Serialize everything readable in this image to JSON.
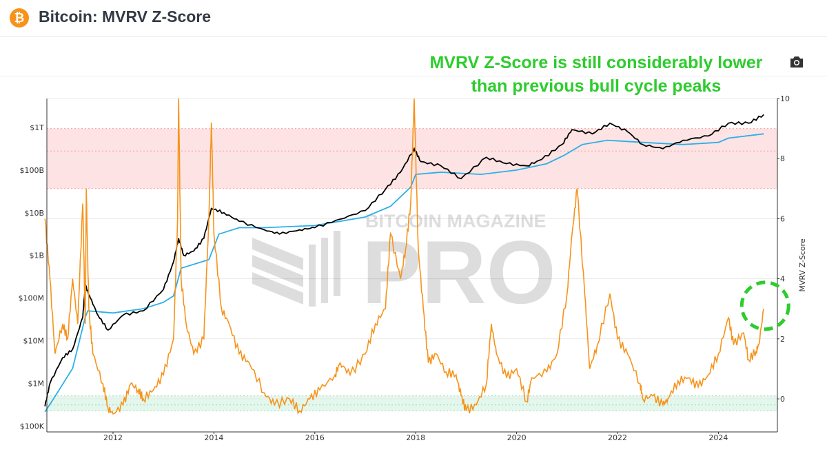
{
  "header": {
    "title": "Bitcoin: MVRV Z-Score",
    "logo_icon": "bitcoin-icon"
  },
  "annotation": {
    "line1": "MVRV Z-Score is still considerably lower",
    "line2": "than previous bull cycle peaks",
    "color": "#2ecc2e"
  },
  "toolbar": {
    "screenshot_icon": "camera-icon"
  },
  "watermark": {
    "line1": "BITCOIN MAGAZINE",
    "line2": "PRO"
  },
  "chart_data": {
    "type": "line",
    "title": "",
    "x_ticks": [
      "2012",
      "2014",
      "2016",
      "2018",
      "2020",
      "2022",
      "2024"
    ],
    "xlim": [
      2010.65,
      2025.1
    ],
    "left_axis": {
      "scale": "log",
      "ticks": [
        "$100K",
        "$1M",
        "$10M",
        "$100M",
        "$1B",
        "$10B",
        "$100B",
        "$1T"
      ],
      "tick_values": [
        5,
        6,
        7,
        8,
        9,
        10,
        11,
        12
      ]
    },
    "right_axis": {
      "label": "MVRV Z-Score",
      "ticks": [
        "0",
        "2",
        "4",
        "6",
        "8",
        "10"
      ],
      "ylim": [
        -0.7,
        10
      ]
    },
    "zones": {
      "overvalued_z": [
        7,
        9
      ],
      "overvalued_color": "#fde3e3",
      "undervalued_z": [
        -0.4,
        0.1
      ],
      "undervalued_color": "#e3f7ec"
    },
    "highlight_circle": {
      "x": 2024.9,
      "z": 3.1,
      "color": "#2ecc2e"
    },
    "series": [
      {
        "key": "zscore",
        "axis": "right",
        "color": "#f7931a",
        "points": [
          [
            2010.65,
            6.0
          ],
          [
            2010.75,
            4.0
          ],
          [
            2010.85,
            1.5
          ],
          [
            2011.0,
            2.5
          ],
          [
            2011.1,
            2.0
          ],
          [
            2011.2,
            4.0
          ],
          [
            2011.3,
            2.5
          ],
          [
            2011.4,
            6.5
          ],
          [
            2011.45,
            2.5
          ],
          [
            2011.47,
            7.0
          ],
          [
            2011.52,
            3.0
          ],
          [
            2011.6,
            1.5
          ],
          [
            2011.8,
            0.5
          ],
          [
            2011.9,
            -0.3
          ],
          [
            2012.0,
            -0.5
          ],
          [
            2012.2,
            -0.2
          ],
          [
            2012.35,
            0.5
          ],
          [
            2012.5,
            0.3
          ],
          [
            2012.6,
            0.0
          ],
          [
            2012.8,
            0.3
          ],
          [
            2013.0,
            0.8
          ],
          [
            2013.2,
            2.0
          ],
          [
            2013.28,
            6.0
          ],
          [
            2013.3,
            10.0
          ],
          [
            2013.35,
            4.0
          ],
          [
            2013.45,
            2.5
          ],
          [
            2013.6,
            1.5
          ],
          [
            2013.8,
            2.0
          ],
          [
            2013.9,
            6.0
          ],
          [
            2013.95,
            9.2
          ],
          [
            2014.0,
            5.5
          ],
          [
            2014.15,
            3.0
          ],
          [
            2014.3,
            2.5
          ],
          [
            2014.5,
            1.5
          ],
          [
            2014.7,
            1.2
          ],
          [
            2015.0,
            0.2
          ],
          [
            2015.2,
            -0.2
          ],
          [
            2015.5,
            0.0
          ],
          [
            2015.7,
            -0.4
          ],
          [
            2015.9,
            0.0
          ],
          [
            2016.1,
            0.3
          ],
          [
            2016.4,
            0.8
          ],
          [
            2016.5,
            1.2
          ],
          [
            2016.7,
            0.8
          ],
          [
            2017.0,
            1.5
          ],
          [
            2017.2,
            2.5
          ],
          [
            2017.4,
            3.0
          ],
          [
            2017.5,
            5.5
          ],
          [
            2017.7,
            4.0
          ],
          [
            2017.8,
            5.0
          ],
          [
            2017.9,
            6.5
          ],
          [
            2017.97,
            10.0
          ],
          [
            2018.05,
            5.0
          ],
          [
            2018.15,
            3.0
          ],
          [
            2018.25,
            1.2
          ],
          [
            2018.4,
            1.5
          ],
          [
            2018.6,
            0.9
          ],
          [
            2018.8,
            0.8
          ],
          [
            2018.9,
            0.1
          ],
          [
            2019.0,
            -0.4
          ],
          [
            2019.2,
            -0.2
          ],
          [
            2019.4,
            0.5
          ],
          [
            2019.5,
            2.5
          ],
          [
            2019.6,
            1.5
          ],
          [
            2019.8,
            0.7
          ],
          [
            2020.0,
            1.0
          ],
          [
            2020.2,
            -0.1
          ],
          [
            2020.3,
            0.7
          ],
          [
            2020.6,
            0.9
          ],
          [
            2020.8,
            1.5
          ],
          [
            2021.0,
            3.5
          ],
          [
            2021.1,
            5.5
          ],
          [
            2021.2,
            7.0
          ],
          [
            2021.35,
            3.5
          ],
          [
            2021.45,
            1.0
          ],
          [
            2021.6,
            1.8
          ],
          [
            2021.85,
            3.5
          ],
          [
            2022.0,
            2.0
          ],
          [
            2022.2,
            1.5
          ],
          [
            2022.45,
            0.5
          ],
          [
            2022.5,
            0.0
          ],
          [
            2022.7,
            0.1
          ],
          [
            2022.9,
            -0.2
          ],
          [
            2023.0,
            0.0
          ],
          [
            2023.2,
            0.6
          ],
          [
            2023.4,
            0.7
          ],
          [
            2023.6,
            0.4
          ],
          [
            2023.8,
            0.8
          ],
          [
            2024.0,
            1.5
          ],
          [
            2024.2,
            2.7
          ],
          [
            2024.3,
            1.8
          ],
          [
            2024.5,
            2.2
          ],
          [
            2024.6,
            1.3
          ],
          [
            2024.75,
            1.6
          ],
          [
            2024.8,
            1.8
          ],
          [
            2024.9,
            3.0
          ]
        ]
      },
      {
        "key": "market_cap",
        "axis": "left",
        "color": "#000000",
        "points": [
          [
            2010.65,
            5.46
          ],
          [
            2010.75,
            6.0
          ],
          [
            2011.0,
            6.6
          ],
          [
            2011.2,
            6.8
          ],
          [
            2011.4,
            7.55
          ],
          [
            2011.45,
            8.3
          ],
          [
            2011.55,
            8.0
          ],
          [
            2011.7,
            7.6
          ],
          [
            2011.9,
            7.25
          ],
          [
            2012.2,
            7.6
          ],
          [
            2012.6,
            7.7
          ],
          [
            2013.0,
            8.2
          ],
          [
            2013.2,
            8.85
          ],
          [
            2013.3,
            9.4
          ],
          [
            2013.4,
            9.0
          ],
          [
            2013.6,
            9.1
          ],
          [
            2013.8,
            9.4
          ],
          [
            2013.95,
            10.1
          ],
          [
            2014.2,
            10.0
          ],
          [
            2014.5,
            9.8
          ],
          [
            2015.0,
            9.6
          ],
          [
            2015.3,
            9.5
          ],
          [
            2015.7,
            9.6
          ],
          [
            2016.0,
            9.65
          ],
          [
            2016.5,
            9.85
          ],
          [
            2017.0,
            10.05
          ],
          [
            2017.4,
            10.55
          ],
          [
            2017.7,
            10.95
          ],
          [
            2017.97,
            11.5
          ],
          [
            2018.1,
            11.2
          ],
          [
            2018.5,
            11.1
          ],
          [
            2018.9,
            10.8
          ],
          [
            2019.4,
            11.3
          ],
          [
            2019.8,
            11.15
          ],
          [
            2020.2,
            11.1
          ],
          [
            2020.5,
            11.25
          ],
          [
            2020.9,
            11.6
          ],
          [
            2021.1,
            11.95
          ],
          [
            2021.5,
            11.85
          ],
          [
            2021.85,
            12.1
          ],
          [
            2022.2,
            11.9
          ],
          [
            2022.5,
            11.6
          ],
          [
            2022.9,
            11.5
          ],
          [
            2023.3,
            11.7
          ],
          [
            2023.8,
            11.8
          ],
          [
            2024.2,
            12.1
          ],
          [
            2024.6,
            12.1
          ],
          [
            2024.9,
            12.3
          ]
        ]
      },
      {
        "key": "realized_cap",
        "axis": "left",
        "color": "#2ab0e8",
        "points": [
          [
            2010.65,
            5.33
          ],
          [
            2010.8,
            5.6
          ],
          [
            2011.2,
            6.35
          ],
          [
            2011.45,
            7.55
          ],
          [
            2011.5,
            7.7
          ],
          [
            2012.0,
            7.65
          ],
          [
            2012.6,
            7.75
          ],
          [
            2013.0,
            7.9
          ],
          [
            2013.2,
            8.05
          ],
          [
            2013.35,
            8.7
          ],
          [
            2013.9,
            8.9
          ],
          [
            2014.1,
            9.5
          ],
          [
            2014.5,
            9.65
          ],
          [
            2015.0,
            9.65
          ],
          [
            2016.0,
            9.7
          ],
          [
            2017.0,
            9.9
          ],
          [
            2017.5,
            10.15
          ],
          [
            2017.9,
            10.6
          ],
          [
            2018.0,
            10.9
          ],
          [
            2018.5,
            10.95
          ],
          [
            2019.3,
            10.9
          ],
          [
            2020.0,
            11.0
          ],
          [
            2020.6,
            11.15
          ],
          [
            2020.95,
            11.35
          ],
          [
            2021.3,
            11.6
          ],
          [
            2021.8,
            11.7
          ],
          [
            2022.5,
            11.65
          ],
          [
            2023.3,
            11.6
          ],
          [
            2024.0,
            11.65
          ],
          [
            2024.2,
            11.75
          ],
          [
            2024.9,
            11.85
          ]
        ]
      }
    ]
  }
}
